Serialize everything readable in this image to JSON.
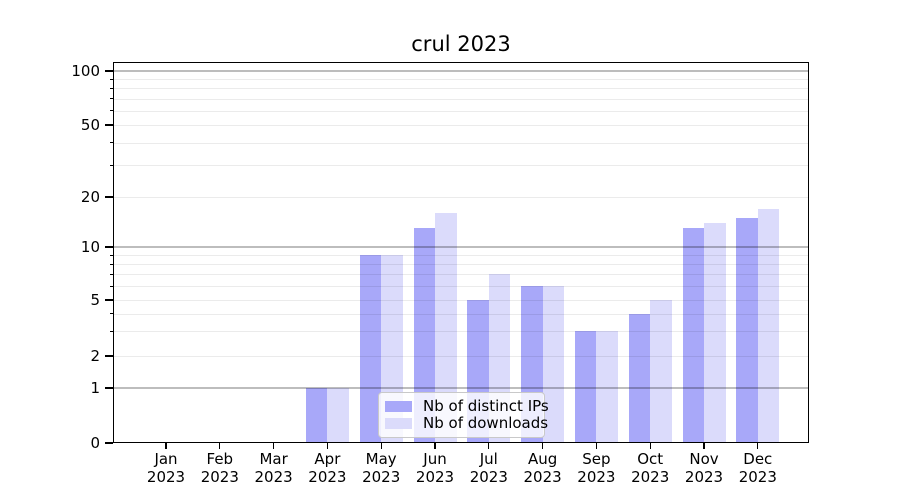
{
  "title": "crul 2023",
  "chart_data": {
    "type": "bar",
    "title": "crul 2023",
    "categories": [
      "Jan 2023",
      "Feb 2023",
      "Mar 2023",
      "Apr 2023",
      "May 2023",
      "Jun 2023",
      "Jul 2023",
      "Aug 2023",
      "Sep 2023",
      "Oct 2023",
      "Nov 2023",
      "Dec 2023"
    ],
    "month_labels": [
      "Jan",
      "Feb",
      "Mar",
      "Apr",
      "May",
      "Jun",
      "Jul",
      "Aug",
      "Sep",
      "Oct",
      "Nov",
      "Dec"
    ],
    "year_label": "2023",
    "series": [
      {
        "name": "Nb of distinct IPs",
        "color": "#a8a8f9",
        "values": [
          0,
          0,
          0,
          1,
          9,
          13,
          5,
          6,
          3,
          4,
          13,
          15
        ]
      },
      {
        "name": "Nb of downloads",
        "color": "#dbdbfb",
        "values": [
          0,
          0,
          0,
          1,
          9,
          16,
          7,
          6,
          3,
          5,
          14,
          17
        ]
      }
    ],
    "xlabel": "",
    "ylabel": "",
    "ylim": [
      0,
      100
    ],
    "y_axis": {
      "scale": "logarithmic above 1, linear 0-1",
      "tick_values": [
        0,
        1,
        2,
        5,
        10,
        20,
        50,
        100
      ],
      "tick_labels": [
        "0",
        "1",
        "2",
        "5",
        "10",
        "20",
        "50",
        "100"
      ],
      "major_gridlines": [
        1,
        10,
        100
      ],
      "minor_gridlines": [
        2,
        3,
        4,
        5,
        6,
        7,
        8,
        9,
        20,
        30,
        40,
        50,
        60,
        70,
        80,
        90
      ]
    },
    "grid": true,
    "legend": {
      "position": "lower center",
      "entries": [
        "Nb of distinct IPs",
        "Nb of downloads"
      ]
    }
  }
}
